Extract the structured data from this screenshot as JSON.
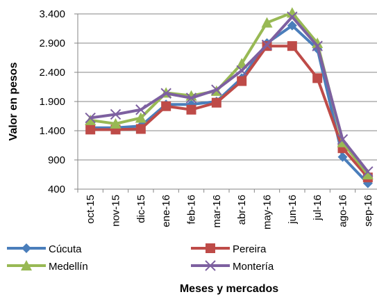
{
  "chart_data": {
    "type": "line",
    "ylabel": "Valor en pesos",
    "xlabel": "Meses  y mercados",
    "categories": [
      "oct-15",
      "nov-15",
      "dic-15",
      "ene-16",
      "feb-16",
      "mar-16",
      "abr-16",
      "may-16",
      "jun-16",
      "jul-16",
      "ago-16",
      "sep-16"
    ],
    "ylim": [
      400,
      3400
    ],
    "yticks": [
      400,
      900,
      {
        "value": 1400,
        "label": "1.400"
      },
      {
        "value": 1900,
        "label": "1.900"
      },
      {
        "value": 2400,
        "label": "2.400"
      },
      {
        "value": 2900,
        "label": "2.900"
      },
      {
        "value": 3400,
        "label": "3.400"
      }
    ],
    "grid": true,
    "series": [
      {
        "name": "Cúcuta",
        "color": "#4a7ebb",
        "marker": "diamond",
        "values": [
          1450,
          1450,
          1480,
          1850,
          1850,
          1900,
          2300,
          2900,
          3200,
          2800,
          950,
          500
        ]
      },
      {
        "name": "Pereira",
        "color": "#be4b48",
        "marker": "square",
        "values": [
          1420,
          1420,
          1430,
          1820,
          1760,
          1880,
          2250,
          2850,
          2850,
          2300,
          1100,
          600
        ]
      },
      {
        "name": "Medellín",
        "color": "#98b954",
        "marker": "triangle",
        "values": [
          1580,
          1520,
          1620,
          2050,
          2000,
          2080,
          2550,
          3250,
          3420,
          2900,
          1200,
          650
        ]
      },
      {
        "name": "Montería",
        "color": "#7d60a0",
        "marker": "x",
        "values": [
          1620,
          1680,
          1760,
          2040,
          1960,
          2100,
          2430,
          2870,
          3350,
          2850,
          1250,
          700
        ]
      }
    ]
  }
}
